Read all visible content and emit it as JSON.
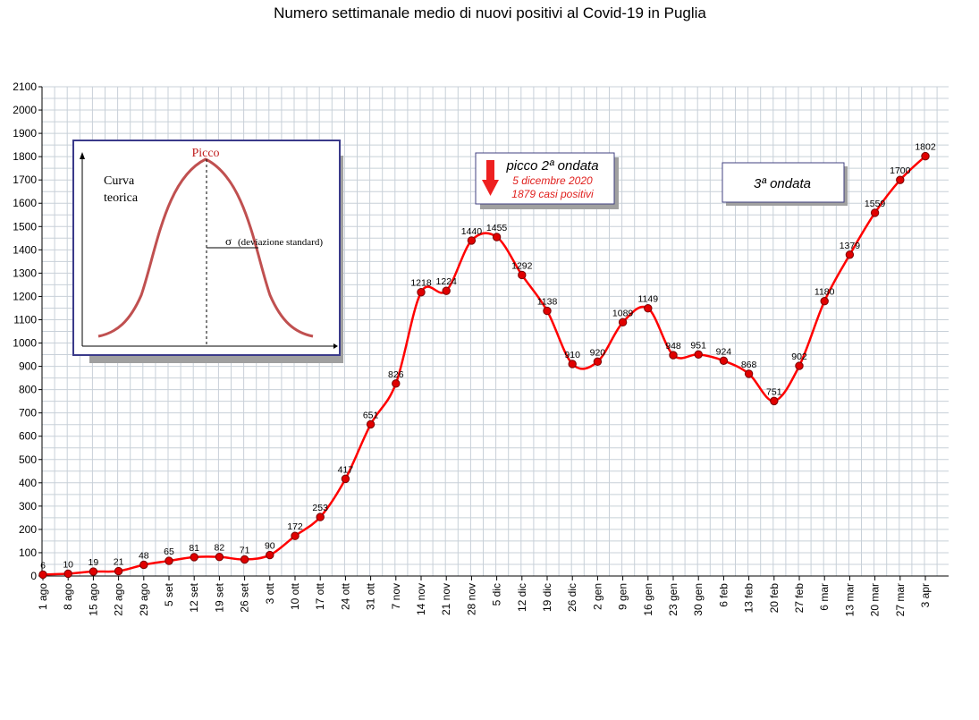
{
  "chart_data": {
    "type": "line",
    "title": "Numero settimanale medio di nuovi positivi al Covid-19 in Puglia",
    "categories": [
      "1 ago",
      "8 ago",
      "15 ago",
      "22 ago",
      "29 ago",
      "5 set",
      "12 set",
      "19 set",
      "26 set",
      "3 ott",
      "10 ott",
      "17 ott",
      "24 ott",
      "31 ott",
      "7 nov",
      "14 nov",
      "21 nov",
      "28 nov",
      "5 dic",
      "12 dic",
      "19 dic",
      "26 dic",
      "2 gen",
      "9 gen",
      "16 gen",
      "23 gen",
      "30 gen",
      "6 feb",
      "13 feb",
      "20 feb",
      "27 feb",
      "6 mar",
      "13 mar",
      "20 mar",
      "27 mar",
      "3 apr"
    ],
    "values": [
      6,
      10,
      19,
      21,
      48,
      65,
      81,
      82,
      71,
      90,
      172,
      253,
      417,
      651,
      826,
      1218,
      1224,
      1440,
      1455,
      1292,
      1138,
      910,
      920,
      1089,
      1149,
      948,
      951,
      924,
      868,
      751,
      902,
      1180,
      1379,
      1559,
      1700,
      1802
    ],
    "ylim": [
      0,
      2100
    ],
    "yticks": [
      0,
      100,
      200,
      300,
      400,
      500,
      600,
      700,
      800,
      900,
      1000,
      1100,
      1200,
      1300,
      1400,
      1500,
      1600,
      1700,
      1800,
      1900,
      2000,
      2100
    ],
    "grid": true,
    "line_color": "#ff0000",
    "marker_color": "#e00000",
    "annotations": {
      "peak2": {
        "title": "picco 2ª ondata",
        "date": "5 dicembre 2020",
        "cases": "1879 casi positivi"
      },
      "wave3": {
        "title": "3ª ondata"
      },
      "inset": {
        "peak_label": "Picco",
        "curve_label_1": "Curva",
        "curve_label_2": "teorica",
        "sigma_symbol": "σ",
        "sigma_label": "(deviazione standard)"
      }
    }
  }
}
